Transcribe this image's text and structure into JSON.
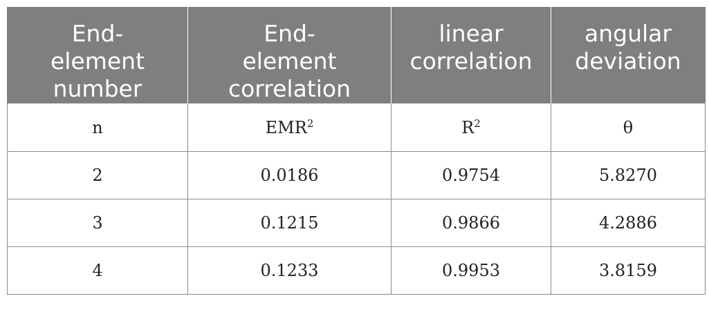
{
  "table": {
    "headers": [
      "End-\nelement\nnumber",
      "End-\nelement\ncorrelation",
      "linear\ncorrelation",
      "angular\ndeviation"
    ],
    "symbols": {
      "n": "n",
      "emr_base": "EMR",
      "emr_sup": "2",
      "r_base": "R",
      "r_sup": "2",
      "theta": "θ"
    },
    "rows": [
      [
        "2",
        "0.0186",
        "0.9754",
        "5.8270"
      ],
      [
        "3",
        "0.1215",
        "0.9866",
        "4.2886"
      ],
      [
        "4",
        "0.1233",
        "0.9953",
        "3.8159"
      ]
    ]
  }
}
